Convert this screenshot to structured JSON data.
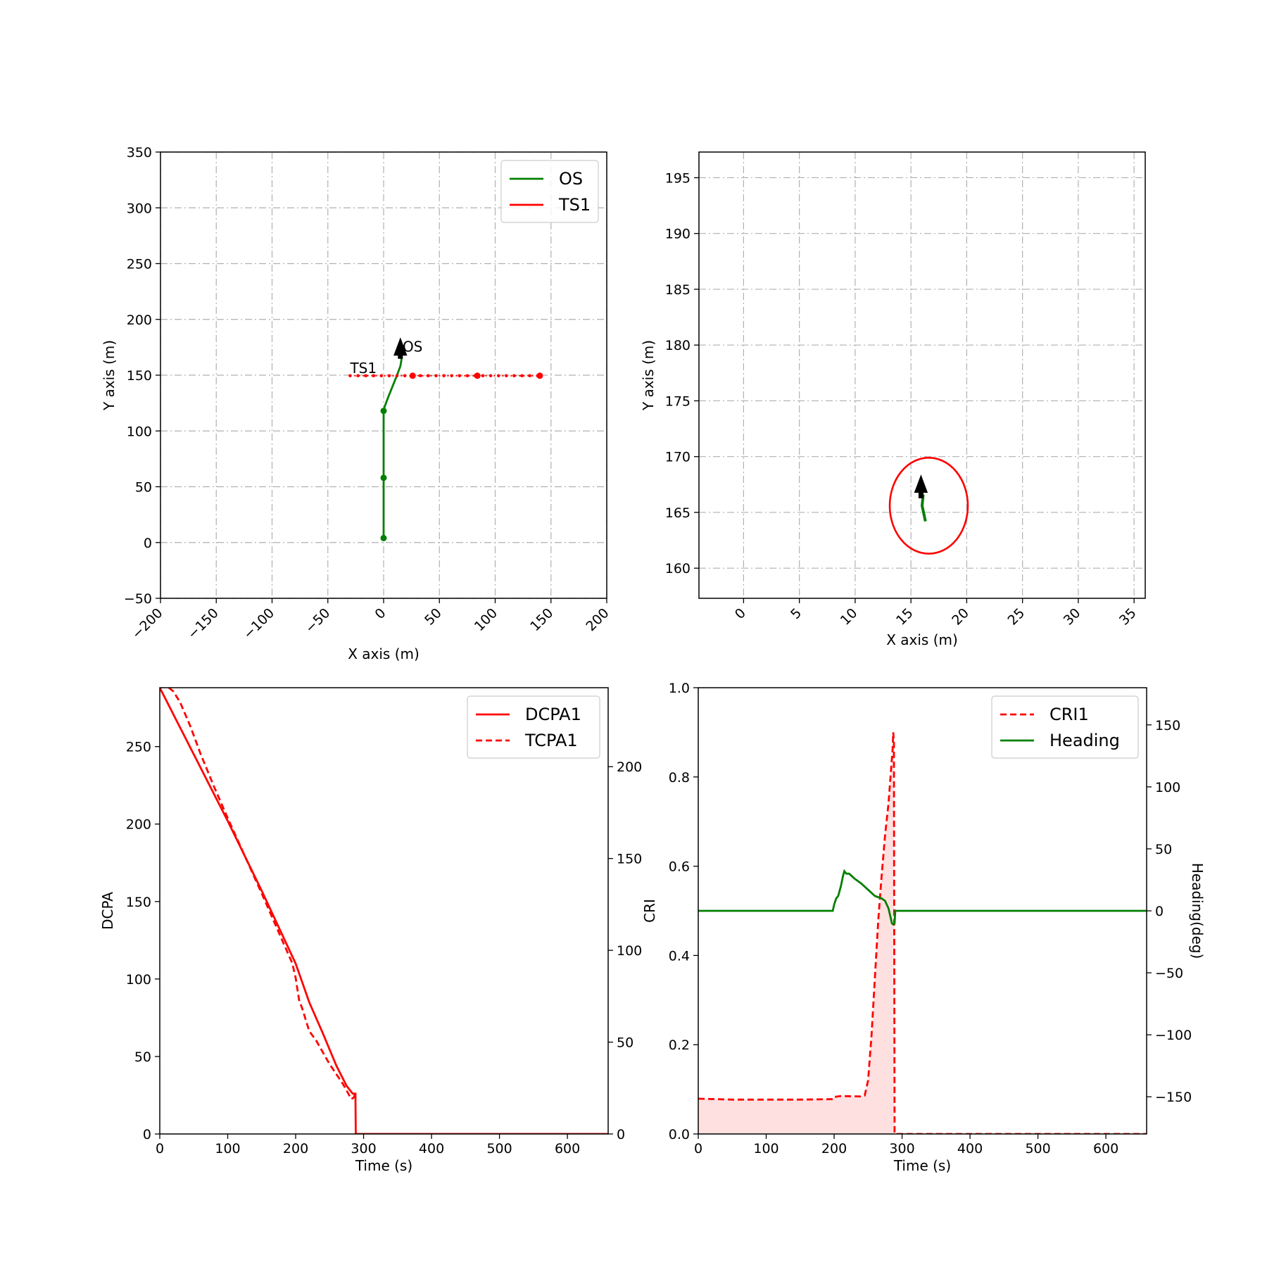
{
  "chart_data": [
    {
      "type": "line",
      "panel": "trajectory-overview",
      "xlabel": "X axis (m)",
      "ylabel": "Y axis (m)",
      "xlim": [
        -200,
        200
      ],
      "ylim": [
        -50,
        350
      ],
      "xticks": [
        -200,
        -150,
        -100,
        -50,
        0,
        50,
        100,
        150,
        200
      ],
      "yticks": [
        -50,
        0,
        50,
        100,
        150,
        200,
        250,
        300,
        350
      ],
      "xtick_labels": [
        "−200",
        "−150",
        "−100",
        "−50",
        "0",
        "50",
        "100",
        "150",
        "200"
      ],
      "ytick_labels": [
        "−50",
        "0",
        "50",
        "100",
        "150",
        "200",
        "250",
        "300",
        "350"
      ],
      "grid": true,
      "legend_position": "top-right",
      "series": [
        {
          "name": "OS",
          "color": "#008000",
          "style": "solid",
          "x": [
            0,
            0,
            0,
            0,
            0,
            1,
            4,
            8,
            12,
            15,
            16,
            16
          ],
          "y": [
            4,
            30,
            58,
            90,
            118,
            122,
            130,
            140,
            150,
            158,
            164,
            170
          ],
          "markers_x": [
            0,
            0,
            0
          ],
          "markers_y": [
            4,
            58,
            118
          ]
        },
        {
          "name": "TS1",
          "color": "#ff0000",
          "style": "dotted",
          "x": [
            -30,
            0,
            26,
            50,
            84,
            110,
            140
          ],
          "y": [
            149.5,
            149.5,
            149.5,
            149.5,
            149.5,
            149.5,
            149.5
          ],
          "markers_x": [
            26,
            84,
            140
          ],
          "markers_y": [
            149.5,
            149.5,
            149.5
          ]
        }
      ],
      "annotations": [
        {
          "text": "OS",
          "x": 17,
          "y": 171
        },
        {
          "text": "TS1",
          "x": -30,
          "y": 152
        }
      ],
      "heading_arrow": {
        "x": 15,
        "y": 165,
        "dx": 0,
        "dy": 18,
        "color": "#000000"
      }
    },
    {
      "type": "line",
      "panel": "trajectory-zoom",
      "xlabel": "X axis (m)",
      "ylabel": "Y axis (m)",
      "xlim": [
        -4,
        36
      ],
      "ylim": [
        157.3,
        197.3
      ],
      "xticks": [
        0,
        5,
        10,
        15,
        20,
        25,
        30,
        35
      ],
      "yticks": [
        160,
        165,
        170,
        175,
        180,
        185,
        190,
        195
      ],
      "xtick_labels": [
        "0",
        "5",
        "10",
        "15",
        "20",
        "25",
        "30",
        "35"
      ],
      "ytick_labels": [
        "160",
        "165",
        "170",
        "175",
        "180",
        "185",
        "190",
        "195"
      ],
      "grid": true,
      "domain_ellipse": {
        "cx": 16.6,
        "cy": 165.6,
        "rx": 3.5,
        "ry": 4.3,
        "color": "#ff0000"
      },
      "os_segment": {
        "x": [
          16.3,
          16.0,
          16.1
        ],
        "y": [
          164.2,
          165.6,
          166.6
        ],
        "color": "#008000"
      },
      "heading_arrow": {
        "x": 15.9,
        "y": 166.3,
        "dx": 0,
        "dy": 2.0,
        "color": "#000000"
      }
    },
    {
      "type": "line",
      "panel": "dcpa-tcpa",
      "xlabel": "Time (s)",
      "ylabel": "DCPA",
      "xlim": [
        0,
        660
      ],
      "ylim": [
        0,
        288
      ],
      "y2lim": [
        0,
        243
      ],
      "xticks": [
        0,
        100,
        200,
        300,
        400,
        500,
        600
      ],
      "yticks": [
        0,
        50,
        100,
        150,
        200,
        250
      ],
      "y2ticks": [
        0,
        50,
        100,
        150,
        200
      ],
      "xtick_labels": [
        "0",
        "100",
        "200",
        "300",
        "400",
        "500",
        "600"
      ],
      "ytick_labels": [
        "0",
        "50",
        "100",
        "150",
        "200",
        "250"
      ],
      "y2tick_labels": [
        "0",
        "50",
        "100",
        "150",
        "200"
      ],
      "legend_position": "top-right",
      "series": [
        {
          "name": "DCPA1",
          "color": "#ff0000",
          "style": "solid",
          "axis": "left",
          "x": [
            0,
            50,
            100,
            150,
            200,
            220,
            240,
            260,
            275,
            284,
            288,
            288.5,
            290,
            660
          ],
          "y": [
            288,
            245,
            202,
            157,
            110,
            85,
            65,
            44,
            31,
            26,
            26,
            0,
            0,
            0
          ]
        },
        {
          "name": "TCPA1",
          "color": "#ff0000",
          "style": "dashed",
          "axis": "right",
          "x": [
            0,
            10,
            20,
            30,
            45,
            60,
            80,
            100,
            150,
            195,
            200,
            205,
            210,
            220,
            230,
            250,
            270,
            282,
            286,
            288
          ],
          "y": [
            243,
            244,
            241,
            235,
            222,
            207,
            189,
            172,
            131,
            93,
            85,
            73,
            68,
            56,
            51,
            38,
            27,
            19,
            20,
            23
          ]
        }
      ]
    },
    {
      "type": "area",
      "panel": "cri-heading",
      "xlabel": "Time (s)",
      "ylabel": "CRI",
      "y2label": "Heading(deg)",
      "xlim": [
        0,
        660
      ],
      "ylim": [
        0,
        1.0
      ],
      "y2lim": [
        -180,
        180
      ],
      "xticks": [
        0,
        100,
        200,
        300,
        400,
        500,
        600
      ],
      "yticks": [
        0.0,
        0.2,
        0.4,
        0.6,
        0.8,
        1.0
      ],
      "y2ticks": [
        -150,
        -100,
        -50,
        0,
        50,
        100,
        150
      ],
      "xtick_labels": [
        "0",
        "100",
        "200",
        "300",
        "400",
        "500",
        "600"
      ],
      "ytick_labels": [
        "0.0",
        "0.2",
        "0.4",
        "0.6",
        "0.8",
        "1.0"
      ],
      "y2tick_labels": [
        "−150",
        "−100",
        "−50",
        "0",
        "50",
        "100",
        "150"
      ],
      "legend_position": "top-right",
      "series": [
        {
          "name": "CRI1",
          "color": "#ff0000",
          "style": "dashed",
          "axis": "left",
          "fill": "#ffe0e0",
          "x": [
            0,
            50,
            100,
            150,
            198,
            200,
            210,
            240,
            245,
            250,
            255,
            260,
            265,
            270,
            275,
            280,
            284,
            286,
            287,
            288,
            289,
            660
          ],
          "y": [
            0.079,
            0.077,
            0.077,
            0.077,
            0.078,
            0.083,
            0.085,
            0.084,
            0.086,
            0.12,
            0.22,
            0.35,
            0.48,
            0.58,
            0.67,
            0.74,
            0.82,
            0.86,
            0.9,
            0.88,
            0.0,
            0.0
          ]
        },
        {
          "name": "Heading",
          "color": "#008000",
          "style": "solid",
          "axis": "right",
          "x": [
            0,
            195,
            198,
            200,
            203,
            206,
            210,
            213,
            215,
            218,
            222,
            230,
            240,
            250,
            260,
            270,
            275,
            280,
            283,
            285,
            287,
            289,
            290,
            292,
            660
          ],
          "y": [
            0,
            0,
            0,
            5,
            10,
            12,
            20,
            28,
            32,
            30,
            30,
            26,
            22,
            17,
            12,
            10,
            8,
            2,
            -5,
            -10,
            -11,
            -10,
            0,
            0,
            0
          ]
        }
      ]
    }
  ]
}
